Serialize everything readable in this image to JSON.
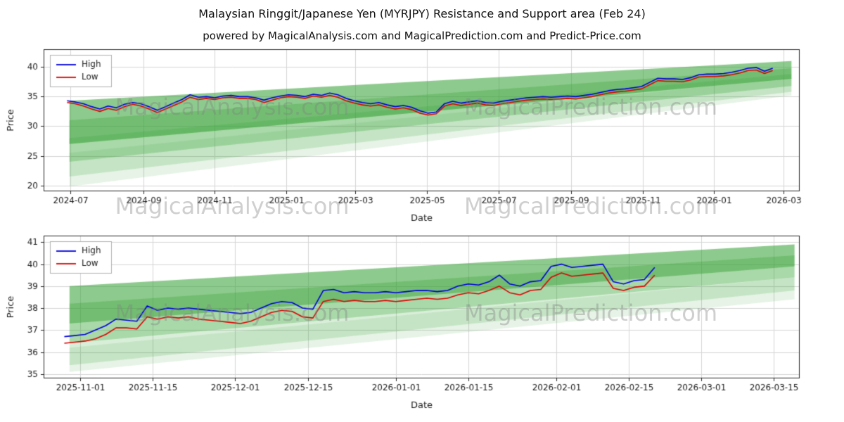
{
  "page": {
    "title": "Malaysian Ringgit/Japanese Yen (MYRJPY) Resistance and Support area (Feb 24)",
    "subtitle": "powered by MagicalAnalysis.com and MagicalPrediction.com and Predict-Price.com",
    "watermark_analysis": "MagicalAnalysis.com",
    "watermark_prediction": "MagicalPrediction.com"
  },
  "colors": {
    "high": "#0000dd",
    "low": "#dd0000",
    "band": "#2f9e2f",
    "grid": "#d5d5d5",
    "axis": "#262626",
    "text": "#1a1a1a",
    "legend_border": "#b0b0b0",
    "background": "#ffffff"
  },
  "chart_data": [
    {
      "type": "line",
      "title": "",
      "xlabel": "Date",
      "ylabel": "Price",
      "xlim": [
        "2024-06-08",
        "2026-03-15"
      ],
      "ylim": [
        19,
        43
      ],
      "yticks": [
        20,
        25,
        30,
        35,
        40
      ],
      "xticks": [
        {
          "d": "2024-07-01",
          "label": "2024-07"
        },
        {
          "d": "2024-09-01",
          "label": "2024-09"
        },
        {
          "d": "2024-11-01",
          "label": "2024-11"
        },
        {
          "d": "2025-01-01",
          "label": "2025-01"
        },
        {
          "d": "2025-03-01",
          "label": "2025-03"
        },
        {
          "d": "2025-05-01",
          "label": "2025-05"
        },
        {
          "d": "2025-07-01",
          "label": "2025-07"
        },
        {
          "d": "2025-09-01",
          "label": "2025-09"
        },
        {
          "d": "2025-11-01",
          "label": "2025-11"
        },
        {
          "d": "2026-01-01",
          "label": "2026-01"
        },
        {
          "d": "2026-03-01",
          "label": "2026-03"
        }
      ],
      "grid": true,
      "legend_loc": "upper left",
      "series": [
        {
          "name": "High",
          "color": "#0000dd",
          "x_start": "2024-06-28",
          "x_step_days": 7,
          "y": [
            34.3,
            34.1,
            33.8,
            33.3,
            32.9,
            33.4,
            33.1,
            33.7,
            34.0,
            33.8,
            33.3,
            32.7,
            33.3,
            33.9,
            34.5,
            35.3,
            34.9,
            35.0,
            34.8,
            35.1,
            35.2,
            35.0,
            35.0,
            34.8,
            34.4,
            34.8,
            35.1,
            35.3,
            35.2,
            35.0,
            35.4,
            35.2,
            35.6,
            35.3,
            34.7,
            34.3,
            34.0,
            33.8,
            34.0,
            33.6,
            33.3,
            33.5,
            33.2,
            32.6,
            32.2,
            32.4,
            33.8,
            34.2,
            33.9,
            34.1,
            34.3,
            34.0,
            33.9,
            34.2,
            34.4,
            34.6,
            34.8,
            34.9,
            35.0,
            34.9,
            35.0,
            35.1,
            35.0,
            35.2,
            35.4,
            35.7,
            36.0,
            36.2,
            36.3,
            36.5,
            36.7,
            37.4,
            38.1,
            38.0,
            38.0,
            37.9,
            38.2,
            38.7,
            38.8,
            38.8,
            38.9,
            39.1,
            39.4,
            39.8,
            39.9,
            39.3,
            39.8
          ]
        },
        {
          "name": "Low",
          "color": "#dd0000",
          "x_start": "2024-06-28",
          "x_step_days": 7,
          "y": [
            34.0,
            33.8,
            33.4,
            32.9,
            32.5,
            33.0,
            32.7,
            33.3,
            33.7,
            33.4,
            32.9,
            32.3,
            32.9,
            33.5,
            34.1,
            34.9,
            34.5,
            34.7,
            34.5,
            34.8,
            34.9,
            34.7,
            34.7,
            34.5,
            34.0,
            34.4,
            34.8,
            35.0,
            34.9,
            34.7,
            35.1,
            34.9,
            35.2,
            34.9,
            34.3,
            33.9,
            33.6,
            33.4,
            33.6,
            33.2,
            32.9,
            33.1,
            32.8,
            32.2,
            31.9,
            32.1,
            33.4,
            33.8,
            33.5,
            33.7,
            33.9,
            33.6,
            33.5,
            33.8,
            34.0,
            34.2,
            34.4,
            34.5,
            34.6,
            34.5,
            34.6,
            34.7,
            34.6,
            34.8,
            35.0,
            35.3,
            35.6,
            35.8,
            35.9,
            36.1,
            36.3,
            37.0,
            37.7,
            37.6,
            37.6,
            37.5,
            37.8,
            38.3,
            38.4,
            38.4,
            38.5,
            38.7,
            39.0,
            39.4,
            39.5,
            38.9,
            39.4
          ]
        }
      ],
      "bands": {
        "color": "#2f9e2f",
        "x0": "2024-06-30",
        "x1": "2026-03-08",
        "segments": [
          [
            27.0,
            34.3,
            38.0,
            41.0,
            0.55
          ],
          [
            24.0,
            31.0,
            36.8,
            39.8,
            0.28
          ],
          [
            21.5,
            28.0,
            35.8,
            38.8,
            0.18
          ],
          [
            19.8,
            25.5,
            35.2,
            38.2,
            0.12
          ]
        ]
      }
    },
    {
      "type": "line",
      "title": "",
      "xlabel": "Date",
      "ylabel": "Price",
      "xlim": [
        "2025-10-25",
        "2026-03-20"
      ],
      "ylim": [
        34.8,
        41.3
      ],
      "yticks": [
        35,
        36,
        37,
        38,
        39,
        40,
        41
      ],
      "xticks": [
        {
          "d": "2025-11-01",
          "label": "2025-11-01"
        },
        {
          "d": "2025-11-15",
          "label": "2025-11-15"
        },
        {
          "d": "2025-12-01",
          "label": "2025-12-01"
        },
        {
          "d": "2025-12-15",
          "label": "2025-12-15"
        },
        {
          "d": "2026-01-01",
          "label": "2026-01-01"
        },
        {
          "d": "2026-01-15",
          "label": "2026-01-15"
        },
        {
          "d": "2026-02-01",
          "label": "2026-02-01"
        },
        {
          "d": "2026-02-15",
          "label": "2026-02-15"
        },
        {
          "d": "2026-03-01",
          "label": "2026-03-01"
        },
        {
          "d": "2026-03-15",
          "label": "2026-03-15"
        }
      ],
      "grid": true,
      "legend_loc": "upper left",
      "series": [
        {
          "name": "High",
          "color": "#0000dd",
          "x_start": "2025-10-29",
          "x_step_days": 2,
          "y": [
            36.7,
            36.75,
            36.8,
            37.0,
            37.2,
            37.5,
            37.45,
            37.4,
            38.1,
            37.9,
            38.0,
            37.95,
            38.0,
            37.95,
            37.9,
            37.85,
            37.8,
            37.75,
            37.8,
            38.0,
            38.2,
            38.3,
            38.25,
            38.0,
            37.95,
            38.8,
            38.85,
            38.7,
            38.75,
            38.7,
            38.7,
            38.75,
            38.7,
            38.75,
            38.8,
            38.8,
            38.75,
            38.8,
            39.0,
            39.1,
            39.05,
            39.2,
            39.5,
            39.1,
            39.0,
            39.2,
            39.25,
            39.9,
            40.0,
            39.85,
            39.9,
            39.95,
            40.0,
            39.2,
            39.1,
            39.25,
            39.3,
            39.85
          ]
        },
        {
          "name": "Low",
          "color": "#dd0000",
          "x_start": "2025-10-29",
          "x_step_days": 2,
          "y": [
            36.4,
            36.45,
            36.5,
            36.6,
            36.8,
            37.1,
            37.1,
            37.05,
            37.6,
            37.5,
            37.6,
            37.55,
            37.6,
            37.5,
            37.45,
            37.4,
            37.35,
            37.3,
            37.4,
            37.6,
            37.8,
            37.9,
            37.85,
            37.6,
            37.55,
            38.3,
            38.4,
            38.3,
            38.35,
            38.3,
            38.3,
            38.35,
            38.3,
            38.35,
            38.4,
            38.45,
            38.4,
            38.45,
            38.6,
            38.7,
            38.65,
            38.8,
            39.0,
            38.7,
            38.6,
            38.8,
            38.85,
            39.4,
            39.6,
            39.45,
            39.5,
            39.55,
            39.6,
            38.9,
            38.8,
            38.95,
            39.0,
            39.5
          ]
        }
      ],
      "bands": {
        "color": "#2f9e2f",
        "x0": "2025-10-30",
        "x1": "2026-03-19",
        "segments": [
          [
            37.3,
            39.0,
            39.9,
            40.9,
            0.55
          ],
          [
            36.4,
            38.2,
            39.4,
            40.4,
            0.28
          ],
          [
            35.4,
            37.3,
            38.8,
            39.9,
            0.18
          ],
          [
            35.1,
            36.2,
            38.4,
            39.4,
            0.12
          ]
        ]
      }
    }
  ]
}
